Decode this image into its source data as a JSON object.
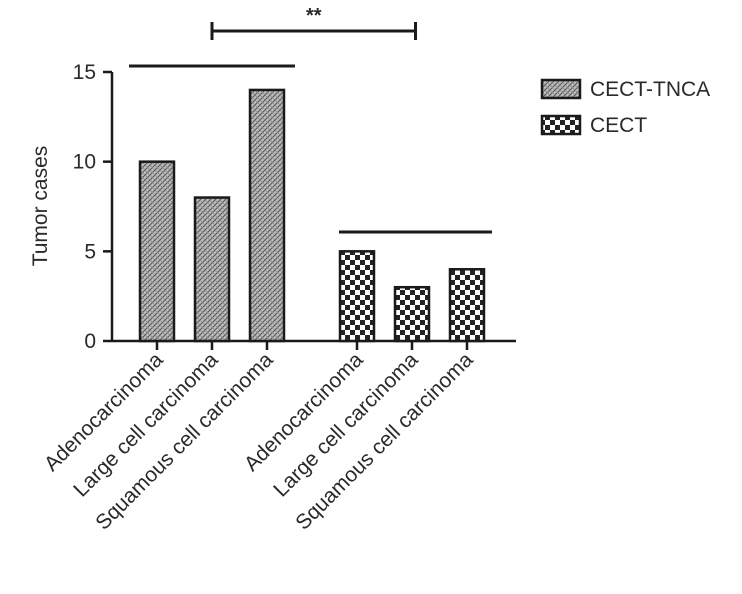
{
  "chart_data": {
    "type": "bar",
    "ylabel": "Tumor cases",
    "xlabel": "",
    "title": "",
    "ylim": [
      0,
      15
    ],
    "yticks": [
      0,
      5,
      10,
      15
    ],
    "legend_position": "top-right",
    "series": [
      {
        "name": "CECT-TNCA",
        "pattern": "fine-crosshatch",
        "categories": [
          "Adenocarcinoma",
          "Large cell carcinoma",
          "Squamous cell carcinoma"
        ],
        "values": [
          10,
          8,
          14
        ]
      },
      {
        "name": "CECT",
        "pattern": "checkerboard",
        "categories": [
          "Adenocarcinoma",
          "Large cell carcinoma",
          "Squamous cell carcinoma"
        ],
        "values": [
          5,
          3,
          4
        ]
      }
    ],
    "annotations": [
      {
        "type": "significance",
        "text": "**",
        "between": [
          "CECT-TNCA",
          "CECT"
        ]
      }
    ]
  }
}
